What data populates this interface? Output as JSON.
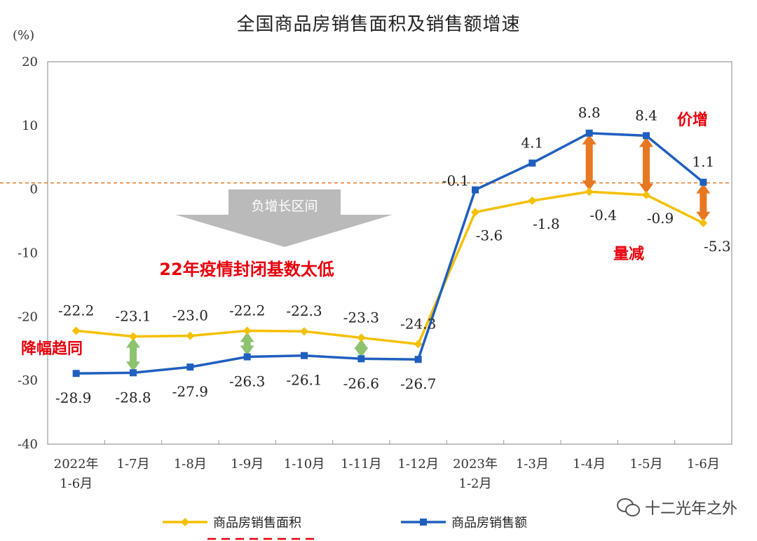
{
  "chart_data": {
    "type": "line",
    "title": "全国商品房销售面积及销售额增速",
    "ylabel": "(%)",
    "ylim": [
      -40,
      20
    ],
    "yticks": [
      20,
      10,
      0,
      -10,
      -20,
      -30,
      -40
    ],
    "categories": [
      [
        "2022年",
        "1-6月"
      ],
      [
        "1-7月"
      ],
      [
        "1-8月"
      ],
      [
        "1-9月"
      ],
      [
        "1-10月"
      ],
      [
        "1-11月"
      ],
      [
        "1-12月"
      ],
      [
        "2023年",
        "1-2月"
      ],
      [
        "1-3月"
      ],
      [
        "1-4月"
      ],
      [
        "1-5月"
      ],
      [
        "1-6月"
      ]
    ],
    "series": [
      {
        "name": "商品房销售面积",
        "color": "#F5C000",
        "values": [
          -22.2,
          -23.1,
          -23.0,
          -22.2,
          -22.3,
          -23.3,
          -24.3,
          -3.6,
          -1.8,
          -0.4,
          -0.9,
          -5.3
        ],
        "labels": [
          "-22.2",
          "-23.1",
          "-23.0",
          "-22.2",
          "-22.3",
          "-23.3",
          "-24.3",
          "-3.6",
          "-1.8",
          "-0.4",
          "-0.9",
          "-5.3"
        ]
      },
      {
        "name": "商品房销售额",
        "color": "#1F5FBF",
        "values": [
          -28.9,
          -28.8,
          -27.9,
          -26.3,
          -26.1,
          -26.6,
          -26.7,
          -0.1,
          4.1,
          8.8,
          8.4,
          1.1
        ],
        "labels": [
          "-28.9",
          "-28.8",
          "-27.9",
          "-26.3",
          "-26.1",
          "-26.6",
          "-26.7",
          "-0.1",
          "4.1",
          "8.8",
          "8.4",
          "1.1"
        ]
      }
    ],
    "reference_line": {
      "value": 1,
      "color": "#E87722"
    },
    "annotations": {
      "negative_zone": "负增长区间",
      "low_base": "22年疫情封闭基数太低",
      "converge": "降幅趋同",
      "price_up": "价增",
      "volume_down": "量减"
    },
    "gap_arrows": [
      {
        "index": 1,
        "color": "#8DC26F"
      },
      {
        "index": 3,
        "color": "#8DC26F"
      },
      {
        "index": 5,
        "color": "#8DC26F"
      },
      {
        "index": 9,
        "color": "#E87722"
      },
      {
        "index": 10,
        "color": "#E87722"
      },
      {
        "index": 11,
        "color": "#E87722"
      }
    ],
    "grid": false,
    "legend_position": "bottom"
  },
  "watermark": "十二光年之外",
  "colors": {
    "annotation_red": "#E8000B",
    "axis": "#999999"
  }
}
